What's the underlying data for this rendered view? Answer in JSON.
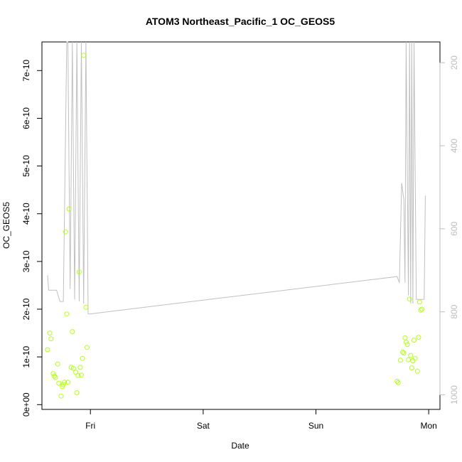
{
  "chart_data": {
    "type": "scatter",
    "title": "ATOM3 Northeast_Pacific_1 OC_GEOS5",
    "xlabel": "Date",
    "ylabel": "OC_GEOS5",
    "x_ticks": [
      "Fri",
      "Sat",
      "Sun",
      "Mon"
    ],
    "x_tick_values": [
      0.0,
      1.0,
      2.0,
      3.0
    ],
    "xlim": [
      -0.43,
      3.1
    ],
    "ylim": [
      -1e-11,
      7.6e-10
    ],
    "y_ticks": [
      0,
      1e-10,
      2e-10,
      3e-10,
      4e-10,
      5e-10,
      6e-10,
      7e-10
    ],
    "y_tick_labels": [
      "0e+00",
      "1e-10",
      "2e-10",
      "3e-10",
      "4e-10",
      "5e-10",
      "6e-10",
      "7e-10"
    ],
    "y2lim_reversed": [
      1035,
      150
    ],
    "y2_ticks": [
      200,
      400,
      600,
      800,
      1000
    ],
    "y2_tick_labels": [
      "200",
      "400",
      "600",
      "800",
      "1000"
    ],
    "grid": false,
    "colors": {
      "points": "#b3ff1a",
      "line": "#c0c0c0",
      "frame": "#000000",
      "right_axis": "#bdbdbd"
    },
    "series": [
      {
        "kind": "points",
        "x": [
          -0.38,
          -0.36,
          -0.35,
          -0.33,
          -0.32,
          -0.31,
          -0.29,
          -0.28,
          -0.26,
          -0.25,
          -0.24,
          -0.23,
          -0.22,
          -0.21,
          -0.2,
          -0.19,
          -0.17,
          -0.16,
          -0.15,
          -0.13,
          -0.12,
          -0.11,
          -0.1,
          -0.09,
          -0.08,
          -0.07,
          -0.06,
          -0.04,
          -0.03,
          2.72,
          2.73,
          2.75,
          2.77,
          2.78,
          2.79,
          2.8,
          2.81,
          2.82,
          2.83,
          2.84,
          2.85,
          2.86,
          2.87,
          2.88,
          2.9,
          2.91,
          2.92,
          2.93,
          2.94
        ],
        "y": [
          1.15e-10,
          1.5e-10,
          1.38e-10,
          6.5e-11,
          6e-11,
          5.7e-11,
          8.5e-11,
          4.5e-11,
          1.8e-11,
          3.8e-11,
          4.2e-11,
          4.7e-11,
          3.62e-10,
          1.9e-10,
          4.7e-11,
          4.1e-10,
          7.8e-11,
          1.53e-10,
          7.6e-11,
          6.8e-11,
          2.5e-11,
          6.1e-11,
          2.78e-10,
          7.8e-11,
          6.2e-11,
          9.7e-11,
          7.32e-10,
          2.04e-10,
          1.2e-10,
          4.9e-11,
          4.6e-11,
          9.3e-11,
          1.1e-10,
          1.08e-10,
          1.4e-10,
          1.31e-10,
          1.26e-10,
          9.4e-11,
          2.21e-10,
          1.03e-10,
          7.7e-11,
          9.2e-11,
          1.35e-10,
          9.7e-11,
          7e-11,
          1.41e-10,
          2.15e-10,
          1.98e-10,
          2e-10
        ]
      },
      {
        "kind": "line",
        "x": [
          -0.38,
          -0.37,
          -0.3,
          -0.27,
          -0.24,
          -0.21,
          -0.2,
          -0.18,
          -0.16,
          -0.14,
          -0.12,
          -0.1,
          -0.08,
          -0.06,
          -0.04,
          -0.02,
          0.0,
          2.72,
          2.74,
          2.76,
          2.78,
          2.79,
          2.8,
          2.82,
          2.83,
          2.84,
          2.85,
          2.86,
          2.87,
          2.89,
          2.9,
          2.92,
          2.94,
          2.96,
          2.97
        ],
        "y": [
          712,
          748,
          748,
          775,
          775,
          150,
          150,
          745,
          150,
          770,
          150,
          775,
          150,
          780,
          150,
          805,
          805,
          715,
          730,
          490,
          530,
          730,
          150,
          760,
          150,
          780,
          150,
          780,
          150,
          770,
          770,
          770,
          770,
          770,
          520
        ]
      }
    ]
  }
}
